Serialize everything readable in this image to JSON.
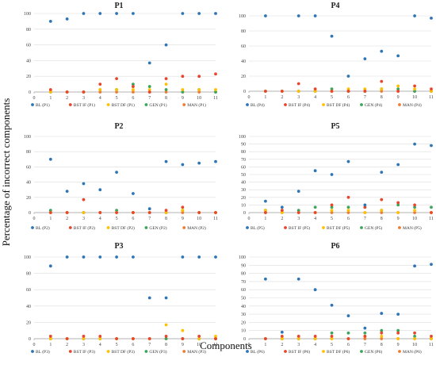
{
  "figure": {
    "ylabel": "Percentage of incorrect components",
    "xlabel": "Components"
  },
  "series_colors": {
    "BL": "#2E75B6",
    "BST IF": "#E8452C",
    "BST DF": "#FFC000",
    "GEN": "#3CA55C",
    "MAN": "#ED7D31"
  },
  "chart_data": [
    {
      "type": "scatter",
      "title": "P1",
      "x": [
        1,
        2,
        3,
        4,
        5,
        6,
        7,
        8,
        9,
        10,
        11
      ],
      "xlim": [
        0,
        11
      ],
      "ylim": [
        0,
        100
      ],
      "ystep": 20,
      "series": [
        {
          "name": "BL (P1)",
          "key": "BL",
          "values": [
            90,
            93,
            100,
            100,
            100,
            100,
            37,
            60,
            100,
            100,
            100
          ]
        },
        {
          "name": "BST IF (P1)",
          "key": "BST IF",
          "values": [
            3,
            0,
            0,
            10,
            17,
            7,
            0,
            17,
            20,
            20,
            23
          ]
        },
        {
          "name": "BST DF (P1)",
          "key": "BST DF",
          "values": [
            0,
            0,
            0,
            3,
            3,
            3,
            3,
            10,
            3,
            3,
            3
          ]
        },
        {
          "name": "GEN (P1)",
          "key": "GEN",
          "values": [
            0,
            0,
            0,
            3,
            3,
            10,
            7,
            3,
            0,
            3,
            0
          ]
        },
        {
          "name": "MAN (P1)",
          "key": "MAN",
          "values": [
            0,
            0,
            0,
            0,
            0,
            0,
            0,
            0,
            0,
            0,
            0
          ]
        }
      ]
    },
    {
      "type": "scatter",
      "title": "P4",
      "x": [
        1,
        2,
        3,
        4,
        5,
        6,
        7,
        8,
        9,
        10,
        11
      ],
      "xlim": [
        0,
        11
      ],
      "ylim": [
        0,
        100
      ],
      "ystep": 20,
      "series": [
        {
          "name": "BL (P4)",
          "key": "BL",
          "values": [
            100,
            null,
            100,
            100,
            73,
            20,
            43,
            53,
            47,
            100,
            97
          ]
        },
        {
          "name": "BST IF (P4)",
          "key": "BST IF",
          "values": [
            0,
            0,
            10,
            3,
            0,
            0,
            0,
            13,
            0,
            7,
            3
          ]
        },
        {
          "name": "BST DF (P4)",
          "key": "BST DF",
          "values": [
            0,
            0,
            0,
            0,
            0,
            3,
            3,
            3,
            7,
            3,
            0
          ]
        },
        {
          "name": "GEN (P4)",
          "key": "GEN",
          "values": [
            0,
            0,
            0,
            0,
            3,
            0,
            0,
            3,
            3,
            0,
            0
          ]
        },
        {
          "name": "MAN (P4)",
          "key": "MAN",
          "values": [
            0,
            0,
            0,
            0,
            0,
            0,
            0,
            0,
            0,
            0,
            0
          ]
        }
      ]
    },
    {
      "type": "scatter",
      "title": "P2",
      "x": [
        1,
        2,
        3,
        4,
        5,
        6,
        7,
        8,
        9,
        10,
        11
      ],
      "xlim": [
        0,
        11
      ],
      "ylim": [
        0,
        100
      ],
      "ystep": 20,
      "series": [
        {
          "name": "BL (P2)",
          "key": "BL",
          "values": [
            70,
            28,
            38,
            30,
            53,
            25,
            5,
            67,
            63,
            65,
            67
          ]
        },
        {
          "name": "BST IF (P2)",
          "key": "BST IF",
          "values": [
            0,
            0,
            17,
            0,
            0,
            0,
            0,
            3,
            7,
            0,
            0
          ]
        },
        {
          "name": "BST DF (P2)",
          "key": "BST DF",
          "values": [
            0,
            0,
            0,
            0,
            0,
            0,
            0,
            0,
            3,
            0,
            0
          ]
        },
        {
          "name": "GEN (P2)",
          "key": "GEN",
          "values": [
            3,
            0,
            0,
            0,
            3,
            0,
            0,
            0,
            3,
            0,
            0
          ]
        },
        {
          "name": "MAN (P2)",
          "key": "MAN",
          "values": [
            0,
            0,
            0,
            0,
            0,
            0,
            0,
            0,
            0,
            0,
            0
          ]
        }
      ]
    },
    {
      "type": "scatter",
      "title": "P5",
      "x": [
        1,
        2,
        3,
        4,
        5,
        6,
        7,
        8,
        9,
        10,
        11
      ],
      "xlim": [
        0,
        11
      ],
      "ylim": [
        0,
        100
      ],
      "ystep": 10,
      "series": [
        {
          "name": "BL (P5)",
          "key": "BL",
          "values": [
            15,
            7,
            28,
            55,
            50,
            67,
            10,
            53,
            63,
            90,
            88
          ]
        },
        {
          "name": "BST IF (P5)",
          "key": "BST IF",
          "values": [
            0,
            3,
            0,
            0,
            10,
            20,
            7,
            17,
            13,
            10,
            0
          ]
        },
        {
          "name": "BST DF (P5)",
          "key": "BST DF",
          "values": [
            3,
            0,
            0,
            0,
            3,
            3,
            0,
            3,
            0,
            3,
            0
          ]
        },
        {
          "name": "GEN (P5)",
          "key": "GEN",
          "values": [
            3,
            3,
            3,
            7,
            7,
            7,
            7,
            3,
            10,
            7,
            7
          ]
        },
        {
          "name": "MAN (P5)",
          "key": "MAN",
          "values": [
            0,
            0,
            0,
            0,
            0,
            0,
            0,
            0,
            0,
            0,
            0
          ]
        }
      ]
    },
    {
      "type": "scatter",
      "title": "P3",
      "x": [
        1,
        2,
        3,
        4,
        5,
        6,
        7,
        8,
        9,
        10,
        11
      ],
      "xlim": [
        0,
        11
      ],
      "ylim": [
        0,
        100
      ],
      "ystep": 20,
      "series": [
        {
          "name": "BL (P3)",
          "key": "BL",
          "values": [
            89,
            100,
            100,
            100,
            100,
            100,
            50,
            50,
            100,
            100,
            100
          ]
        },
        {
          "name": "BST IF (P3)",
          "key": "BST IF",
          "values": [
            3,
            0,
            3,
            3,
            0,
            0,
            0,
            3,
            0,
            3,
            0
          ]
        },
        {
          "name": "BST DF (P3)",
          "key": "BST DF",
          "values": [
            0,
            0,
            0,
            0,
            0,
            0,
            0,
            17,
            10,
            0,
            3
          ]
        },
        {
          "name": "GEN (P3)",
          "key": "GEN",
          "values": [
            0,
            0,
            0,
            0,
            0,
            0,
            0,
            0,
            0,
            0,
            0
          ]
        },
        {
          "name": "MAN (P3)",
          "key": "MAN",
          "values": [
            0,
            0,
            0,
            0,
            0,
            0,
            0,
            0,
            0,
            0,
            0
          ]
        }
      ]
    },
    {
      "type": "scatter",
      "title": "P6",
      "x": [
        1,
        2,
        3,
        4,
        5,
        6,
        7,
        8,
        9,
        10,
        11
      ],
      "xlim": [
        0,
        11
      ],
      "ylim": [
        0,
        100
      ],
      "ystep": 10,
      "series": [
        {
          "name": "BL (P6)",
          "key": "BL",
          "values": [
            73,
            8,
            73,
            60,
            41,
            28,
            13,
            31,
            30,
            89,
            91
          ]
        },
        {
          "name": "BST IF (P6)",
          "key": "BST IF",
          "values": [
            0,
            3,
            3,
            3,
            3,
            0,
            3,
            7,
            7,
            7,
            3
          ]
        },
        {
          "name": "BST DF (P6)",
          "key": "BST DF",
          "values": [
            0,
            0,
            0,
            0,
            0,
            0,
            3,
            3,
            0,
            0,
            0
          ]
        },
        {
          "name": "GEN (P6)",
          "key": "GEN",
          "values": [
            0,
            0,
            0,
            0,
            7,
            7,
            7,
            10,
            10,
            3,
            0
          ]
        },
        {
          "name": "MAN (P6)",
          "key": "MAN",
          "values": [
            0,
            0,
            0,
            0,
            0,
            0,
            0,
            0,
            0,
            0,
            0
          ]
        }
      ]
    }
  ]
}
